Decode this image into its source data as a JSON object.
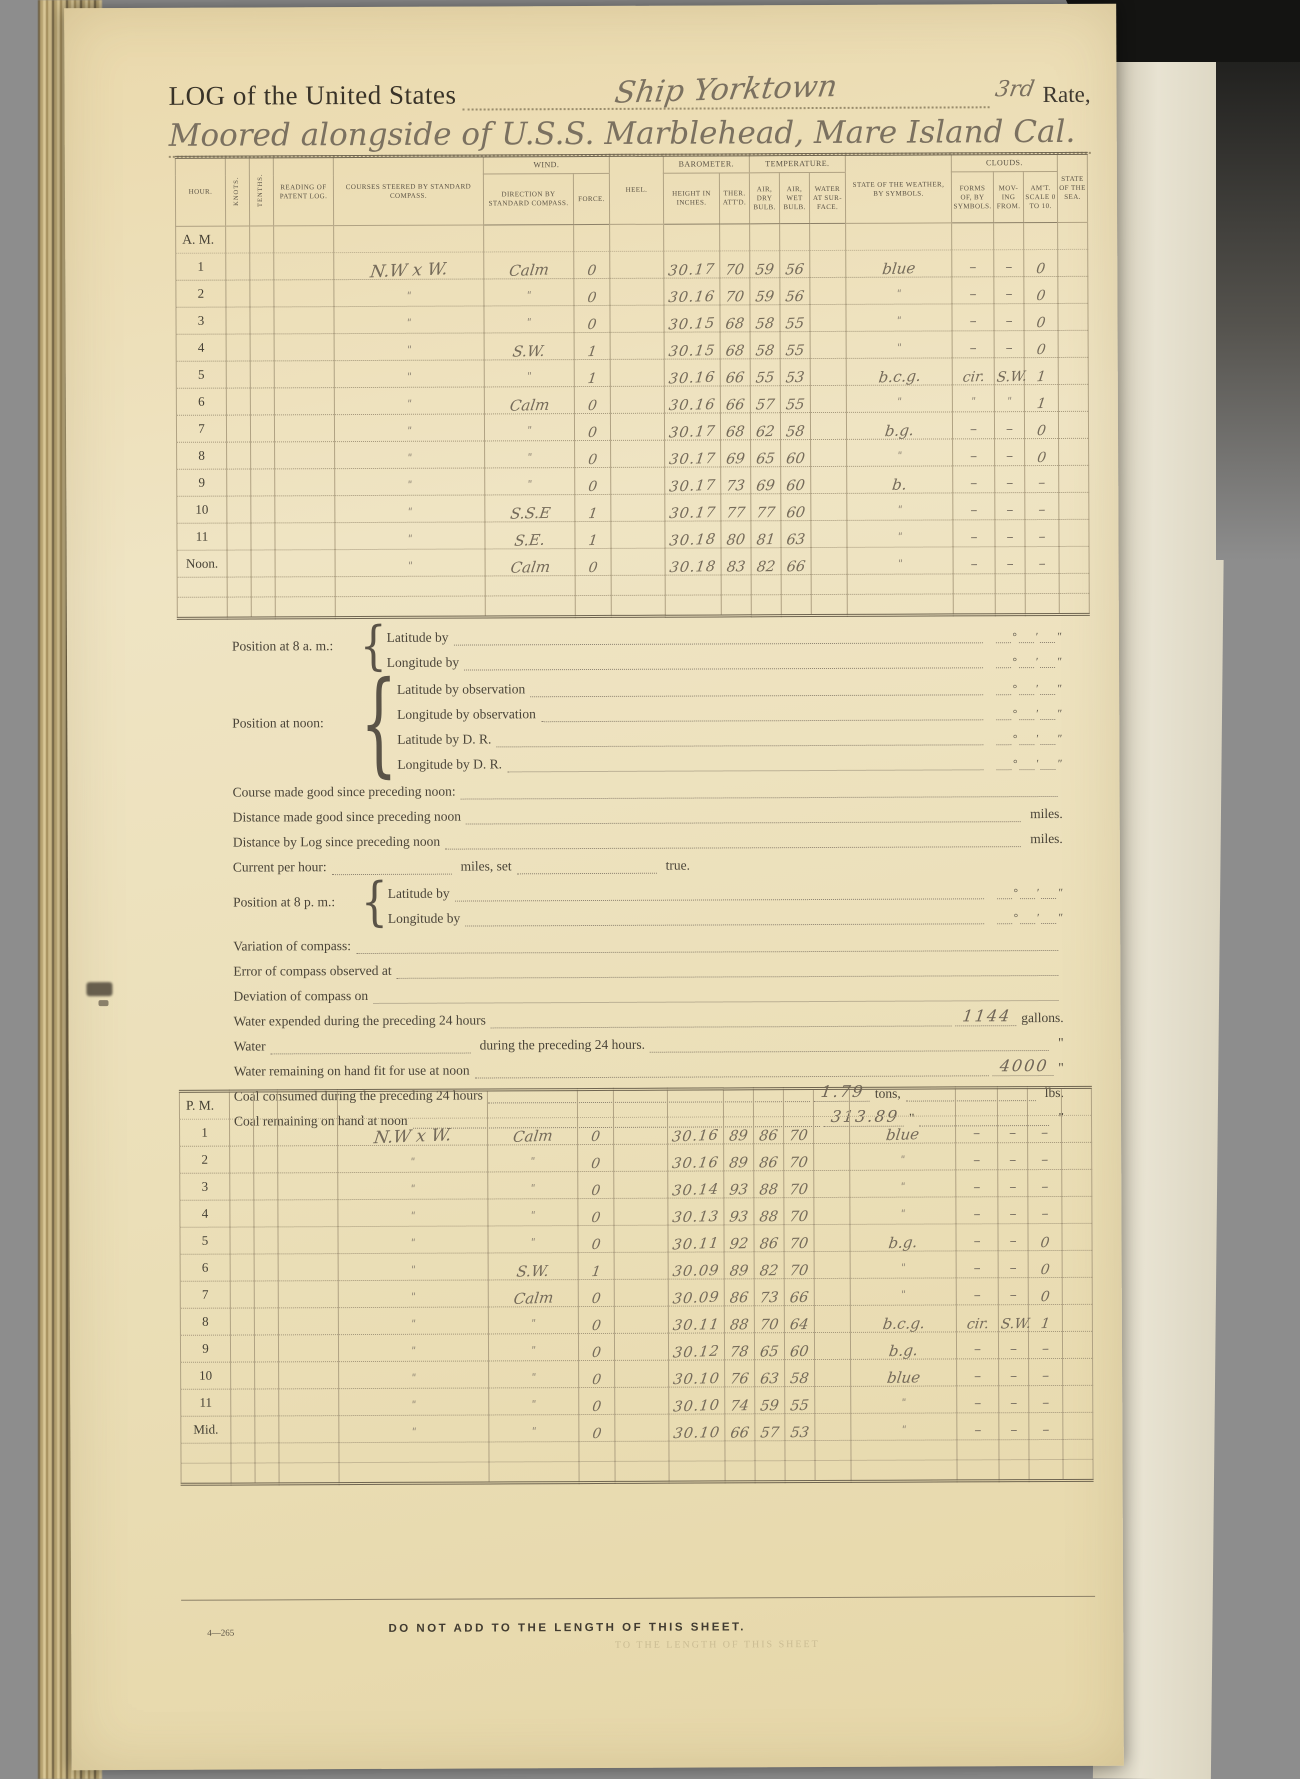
{
  "page": {
    "title_printed": "LOG of the United States",
    "ship_handwritten": "Ship Yorktown",
    "rate_handwritten": "3rd",
    "rate_printed": "Rate,",
    "location_handwritten": "Moored alongside of U.S.S. Marblehead, Mare Island Cal.",
    "form_number": "4—265",
    "footer_warning": "DO NOT ADD TO THE LENGTH OF THIS SHEET.",
    "footer_bleed": "TO THE LENGTH OF THIS SHEET"
  },
  "table_headers": {
    "hour": "Hour.",
    "knots": "Knots.",
    "tenths": "Tenths.",
    "patent_log": "Reading of Patent Log.",
    "courses": "Courses Steered by Standard Compass.",
    "wind_group": "Wind.",
    "wind_direction": "Direction by Standard Compass.",
    "wind_force": "Force.",
    "heel": "Heel.",
    "barometer_group": "Barometer.",
    "height": "Height in Inches.",
    "ther": "Ther. Att'd.",
    "temperature_group": "Temperature.",
    "dry_bulb": "Air, Dry Bulb.",
    "wet_bulb": "Air, Wet Bulb.",
    "water_surface": "Water at Sur- face.",
    "weather": "State of the Weather, by Symbols.",
    "clouds_group": "Clouds.",
    "cloud_forms": "Forms of, by Symbols.",
    "cloud_moving": "Mov- ing From.",
    "cloud_amount": "Am't. Scale 0 to 10.",
    "sea": "State of the Sea."
  },
  "am_table": {
    "rows": [
      {
        "hour": "A. M.",
        "section": true
      },
      {
        "hour": "1",
        "course": "N.W x W.",
        "wind_dir": "Calm",
        "force": "0",
        "height": "30.17",
        "ther": "70",
        "dry": "59",
        "wet": "56",
        "weather": "blue",
        "forms": "–",
        "moving": "–",
        "amt": "0"
      },
      {
        "hour": "2",
        "course": "\"",
        "wind_dir": "\"",
        "force": "0",
        "height": "30.16",
        "ther": "70",
        "dry": "59",
        "wet": "56",
        "weather": "\"",
        "forms": "–",
        "moving": "–",
        "amt": "0"
      },
      {
        "hour": "3",
        "course": "\"",
        "wind_dir": "\"",
        "force": "0",
        "height": "30.15",
        "ther": "68",
        "dry": "58",
        "wet": "55",
        "weather": "\"",
        "forms": "–",
        "moving": "–",
        "amt": "0"
      },
      {
        "hour": "4",
        "course": "\"",
        "wind_dir": "S.W.",
        "force": "1",
        "height": "30.15",
        "ther": "68",
        "dry": "58",
        "wet": "55",
        "weather": "\"",
        "forms": "–",
        "moving": "–",
        "amt": "0"
      },
      {
        "hour": "5",
        "course": "\"",
        "wind_dir": "\"",
        "force": "1",
        "height": "30.16",
        "ther": "66",
        "dry": "55",
        "wet": "53",
        "weather": "b.c.g.",
        "forms": "cir.",
        "moving": "S.W.",
        "amt": "1"
      },
      {
        "hour": "6",
        "course": "\"",
        "wind_dir": "Calm",
        "force": "0",
        "height": "30.16",
        "ther": "66",
        "dry": "57",
        "wet": "55",
        "weather": "\"",
        "forms": "\"",
        "moving": "\"",
        "amt": "1"
      },
      {
        "hour": "7",
        "course": "\"",
        "wind_dir": "\"",
        "force": "0",
        "height": "30.17",
        "ther": "68",
        "dry": "62",
        "wet": "58",
        "weather": "b.g.",
        "forms": "–",
        "moving": "–",
        "amt": "0"
      },
      {
        "hour": "8",
        "course": "\"",
        "wind_dir": "\"",
        "force": "0",
        "height": "30.17",
        "ther": "69",
        "dry": "65",
        "wet": "60",
        "weather": "\"",
        "forms": "–",
        "moving": "–",
        "amt": "0"
      },
      {
        "hour": "9",
        "course": "\"",
        "wind_dir": "\"",
        "force": "0",
        "height": "30.17",
        "ther": "73",
        "dry": "69",
        "wet": "60",
        "weather": "b.",
        "forms": "–",
        "moving": "–",
        "amt": "–"
      },
      {
        "hour": "10",
        "course": "\"",
        "wind_dir": "S.S.E",
        "force": "1",
        "height": "30.17",
        "ther": "77",
        "dry": "77",
        "wet": "60",
        "weather": "\"",
        "forms": "–",
        "moving": "–",
        "amt": "–"
      },
      {
        "hour": "11",
        "course": "\"",
        "wind_dir": "S.E.",
        "force": "1",
        "height": "30.18",
        "ther": "80",
        "dry": "81",
        "wet": "63",
        "weather": "\"",
        "forms": "–",
        "moving": "–",
        "amt": "–"
      },
      {
        "hour": "Noon.",
        "course": "\"",
        "wind_dir": "Calm",
        "force": "0",
        "height": "30.18",
        "ther": "83",
        "dry": "82",
        "wet": "66",
        "weather": "\"",
        "forms": "–",
        "moving": "–",
        "amt": "–"
      },
      {
        "hour": "",
        "filler": true
      },
      {
        "hour": "",
        "filler": true
      }
    ]
  },
  "pm_table": {
    "rows": [
      {
        "hour": "P. M.",
        "section": true
      },
      {
        "hour": "1",
        "course": "N.W x W.",
        "wind_dir": "Calm",
        "force": "0",
        "height": "30.16",
        "ther": "89",
        "dry": "86",
        "wet": "70",
        "weather": "blue",
        "forms": "–",
        "moving": "–",
        "amt": "–"
      },
      {
        "hour": "2",
        "course": "\"",
        "wind_dir": "\"",
        "force": "0",
        "height": "30.16",
        "ther": "89",
        "dry": "86",
        "wet": "70",
        "weather": "\"",
        "forms": "–",
        "moving": "–",
        "amt": "–"
      },
      {
        "hour": "3",
        "course": "\"",
        "wind_dir": "\"",
        "force": "0",
        "height": "30.14",
        "ther": "93",
        "dry": "88",
        "wet": "70",
        "weather": "\"",
        "forms": "–",
        "moving": "–",
        "amt": "–"
      },
      {
        "hour": "4",
        "course": "\"",
        "wind_dir": "\"",
        "force": "0",
        "height": "30.13",
        "ther": "93",
        "dry": "88",
        "wet": "70",
        "weather": "\"",
        "forms": "–",
        "moving": "–",
        "amt": "–"
      },
      {
        "hour": "5",
        "course": "\"",
        "wind_dir": "\"",
        "force": "0",
        "height": "30.11",
        "ther": "92",
        "dry": "86",
        "wet": "70",
        "weather": "b.g.",
        "forms": "–",
        "moving": "–",
        "amt": "0"
      },
      {
        "hour": "6",
        "course": "\"",
        "wind_dir": "S.W.",
        "force": "1",
        "height": "30.09",
        "ther": "89",
        "dry": "82",
        "wet": "70",
        "weather": "\"",
        "forms": "–",
        "moving": "–",
        "amt": "0"
      },
      {
        "hour": "7",
        "course": "\"",
        "wind_dir": "Calm",
        "force": "0",
        "height": "30.09",
        "ther": "86",
        "dry": "73",
        "wet": "66",
        "weather": "\"",
        "forms": "–",
        "moving": "–",
        "amt": "0"
      },
      {
        "hour": "8",
        "course": "\"",
        "wind_dir": "\"",
        "force": "0",
        "height": "30.11",
        "ther": "88",
        "dry": "70",
        "wet": "64",
        "weather": "b.c.g.",
        "forms": "cir.",
        "moving": "S.W.",
        "amt": "1"
      },
      {
        "hour": "9",
        "course": "\"",
        "wind_dir": "\"",
        "force": "0",
        "height": "30.12",
        "ther": "78",
        "dry": "65",
        "wet": "60",
        "weather": "b.g.",
        "forms": "–",
        "moving": "–",
        "amt": "–"
      },
      {
        "hour": "10",
        "course": "\"",
        "wind_dir": "\"",
        "force": "0",
        "height": "30.10",
        "ther": "76",
        "dry": "63",
        "wet": "58",
        "weather": "blue",
        "forms": "–",
        "moving": "–",
        "amt": "–"
      },
      {
        "hour": "11",
        "course": "\"",
        "wind_dir": "\"",
        "force": "0",
        "height": "30.10",
        "ther": "74",
        "dry": "59",
        "wet": "55",
        "weather": "\"",
        "forms": "–",
        "moving": "–",
        "amt": "–"
      },
      {
        "hour": "Mid.",
        "course": "\"",
        "wind_dir": "\"",
        "force": "0",
        "height": "30.10",
        "ther": "66",
        "dry": "57",
        "wet": "53",
        "weather": "\"",
        "forms": "–",
        "moving": "–",
        "amt": "–"
      },
      {
        "hour": "",
        "filler": true
      },
      {
        "hour": "",
        "filler": true
      }
    ]
  },
  "mid": {
    "marks": [
      "°",
      "′",
      "″"
    ],
    "rows": [
      {
        "type": "group",
        "label": "Position at 8 a. m.:",
        "lines": [
          "Latitude by",
          "Longitude by"
        ]
      },
      {
        "type": "group",
        "label": "Position at noon:",
        "lines": [
          "Latitude by observation",
          "Longitude by observation",
          "Latitude by D. R.",
          "Longitude by D. R."
        ]
      },
      {
        "type": "plain",
        "label": "Course made good since preceding noon:"
      },
      {
        "type": "unit",
        "label": "Distance made good since preceding noon",
        "unit": "miles."
      },
      {
        "type": "unit",
        "label": "Distance by Log since preceding noon",
        "unit": "miles."
      },
      {
        "type": "current",
        "label": "Current per hour:",
        "mid": "miles, set",
        "end": "true."
      },
      {
        "type": "group",
        "label": "Position at 8 p. m.:",
        "lines": [
          "Latitude by",
          "Longitude by"
        ]
      },
      {
        "type": "plain",
        "label": "Variation of compass:"
      },
      {
        "type": "plain",
        "label": "Error of compass observed at"
      },
      {
        "type": "plain",
        "label": "Deviation of compass on"
      },
      {
        "type": "value_unit",
        "label": "Water expended during the preceding 24 hours",
        "value": "1144",
        "unit": "gallons."
      },
      {
        "type": "water_blank",
        "label": "Water",
        "mid": "during the preceding 24 hours.",
        "unit": "\""
      },
      {
        "type": "value_unit",
        "label": "Water remaining on hand fit for use at noon",
        "value": "4000",
        "unit": "\""
      },
      {
        "type": "coal",
        "label": "Coal consumed during the preceding 24 hours",
        "value": "1.79",
        "unit": "tons,",
        "unit2": "lbs."
      },
      {
        "type": "coal",
        "label": "Coal remaining on hand at noon",
        "value": "313.89",
        "unit": "\"",
        "unit2": "\""
      }
    ]
  }
}
